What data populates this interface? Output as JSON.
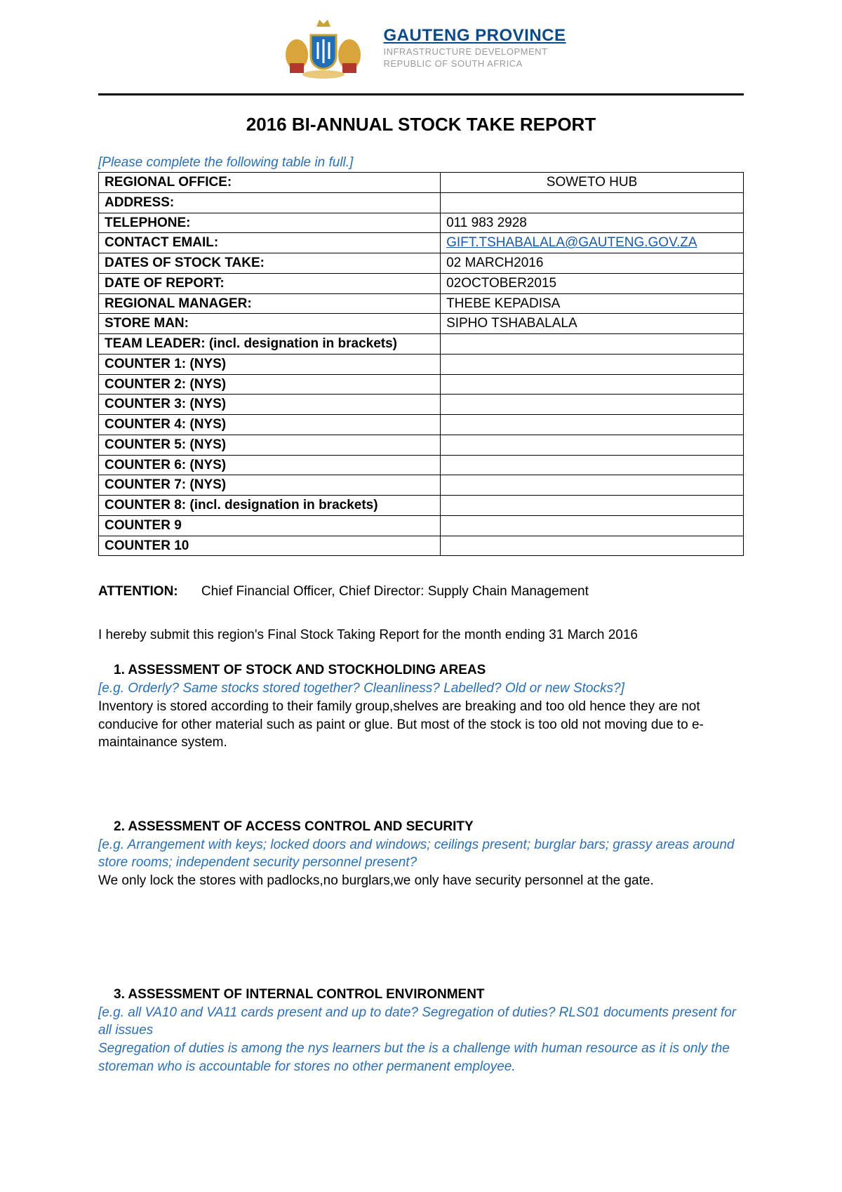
{
  "header": {
    "province": "GAUTENG PROVINCE",
    "sub1": "INFRASTRUCTURE DEVELOPMENT",
    "sub2": "REPUBLIC OF SOUTH AFRICA",
    "crest_colors": {
      "shield": "#1e6fb8",
      "gold": "#d9a53b",
      "red": "#b2362c",
      "crown": "#c9a23a"
    }
  },
  "title": "2016 BI-ANNUAL STOCK TAKE REPORT",
  "table_instruction": "[Please complete the following table in full.]",
  "info_rows": [
    {
      "label": "REGIONAL OFFICE:",
      "value": "SOWETO HUB",
      "center": true
    },
    {
      "label": "ADDRESS:",
      "value": ""
    },
    {
      "label": "TELEPHONE:",
      "value": "011 983 2928"
    },
    {
      "label": "CONTACT EMAIL:",
      "value": "GIFT.TSHABALALA@GAUTENG.GOV.ZA",
      "email": true
    },
    {
      "label": "DATES OF STOCK TAKE:",
      "value": "02 MARCH2016"
    },
    {
      "label": "DATE OF REPORT:",
      "value": "02OCTOBER2015"
    },
    {
      "label": "REGIONAL MANAGER:",
      "value": "THEBE KEPADISA"
    },
    {
      "label": "STORE MAN:",
      "value": "SIPHO TSHABALALA"
    },
    {
      "label": "TEAM LEADER: (incl. designation in brackets)",
      "value": ""
    },
    {
      "label": "COUNTER 1: (NYS)",
      "value": ""
    },
    {
      "label": "COUNTER 2: (NYS)",
      "value": ""
    },
    {
      "label": "COUNTER 3: (NYS)",
      "value": ""
    },
    {
      "label": "COUNTER 4: (NYS)",
      "value": ""
    },
    {
      "label": "COUNTER 5: (NYS)",
      "value": ""
    },
    {
      "label": "COUNTER 6: (NYS)",
      "value": ""
    },
    {
      "label": "COUNTER 7: (NYS)",
      "value": ""
    },
    {
      "label": "COUNTER 8: (incl. designation in brackets)",
      "value": ""
    },
    {
      "label": "COUNTER 9",
      "value": ""
    },
    {
      "label": "COUNTER 10",
      "value": ""
    }
  ],
  "attention": {
    "label": "ATTENTION:",
    "text": "Chief Financial Officer, Chief Director: Supply Chain Management"
  },
  "submit_line": "I hereby submit this region's Final Stock Taking Report for the month ending 31 March 2016",
  "sections": [
    {
      "num": "1.",
      "title": "ASSESSMENT OF STOCK AND STOCKHOLDING AREAS",
      "hint": "[e.g. Orderly? Same stocks stored together? Cleanliness? Labelled? Old or new Stocks?]",
      "body": " Inventory is stored according to their family group,shelves are breaking and too old hence they are not conducive for other material such as paint or glue. But most of the stock is too old not moving due to e-maintainance system."
    },
    {
      "num": "2.",
      "title": "ASSESSMENT OF ACCESS CONTROL AND SECURITY",
      "hint": "[e.g. Arrangement with keys; locked doors and windows; ceilings present; burglar bars; grassy areas around store rooms; independent security personnel present?",
      "body": "We only lock the stores with padlocks,no burglars,we only have security personnel at the gate."
    },
    {
      "num": "3.",
      "title": "ASSESSMENT OF INTERNAL CONTROL ENVIRONMENT",
      "hint": "[e.g. all VA10 and VA11 cards present and up to date? Segregation of duties? RLS01 documents present for all issues",
      "hint2": "Segregation of duties is among the nys learners but the is a challenge with human resource as it is only the storeman who is accountable for stores no other permanent employee.",
      "body": ""
    }
  ]
}
